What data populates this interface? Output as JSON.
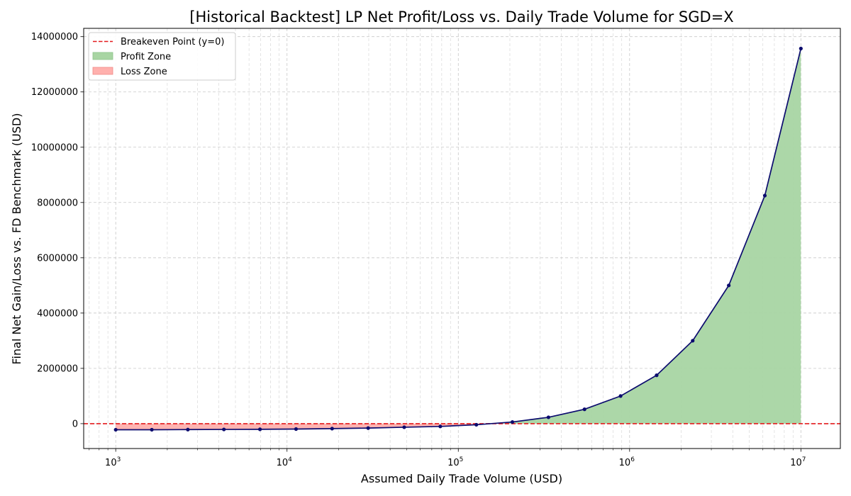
{
  "chart_data": {
    "type": "line",
    "title": "[Historical Backtest] LP Net Profit/Loss vs. Daily Trade Volume for SGD=X",
    "xlabel": "Assumed Daily Trade Volume (USD)",
    "ylabel": "Final Net Gain/Loss vs. FD Benchmark (USD)",
    "x_scale": "log",
    "xlim": [
      650,
      17000000
    ],
    "ylim": [
      -900000,
      14300000
    ],
    "grid": true,
    "legend_position": "top-left",
    "x_ticks": [
      {
        "value": 1000,
        "base": "10",
        "exp": "3"
      },
      {
        "value": 10000,
        "base": "10",
        "exp": "4"
      },
      {
        "value": 100000,
        "base": "10",
        "exp": "5"
      },
      {
        "value": 1000000,
        "base": "10",
        "exp": "6"
      },
      {
        "value": 10000000,
        "base": "10",
        "exp": "7"
      }
    ],
    "y_ticks": [
      {
        "value": 0,
        "label": "0"
      },
      {
        "value": 2000000,
        "label": "2000000"
      },
      {
        "value": 4000000,
        "label": "4000000"
      },
      {
        "value": 6000000,
        "label": "6000000"
      },
      {
        "value": 8000000,
        "label": "8000000"
      },
      {
        "value": 10000000,
        "label": "10000000"
      },
      {
        "value": 12000000,
        "label": "12000000"
      },
      {
        "value": 14000000,
        "label": "14000000"
      }
    ],
    "series": [
      {
        "color": "#0b0b6e",
        "points": [
          {
            "x": 1000,
            "y": -220000
          },
          {
            "x": 1624,
            "y": -220000
          },
          {
            "x": 2637,
            "y": -215000
          },
          {
            "x": 4281,
            "y": -210000
          },
          {
            "x": 6952,
            "y": -205000
          },
          {
            "x": 11288,
            "y": -195000
          },
          {
            "x": 18330,
            "y": -180000
          },
          {
            "x": 29764,
            "y": -160000
          },
          {
            "x": 48329,
            "y": -130000
          },
          {
            "x": 78476,
            "y": -100000
          },
          {
            "x": 127427,
            "y": -40000
          },
          {
            "x": 206914,
            "y": 60000
          },
          {
            "x": 335982,
            "y": 230000
          },
          {
            "x": 545559,
            "y": 520000
          },
          {
            "x": 885867,
            "y": 1000000
          },
          {
            "x": 1438450,
            "y": 1750000
          },
          {
            "x": 2335721,
            "y": 3000000
          },
          {
            "x": 3792690,
            "y": 5000000
          },
          {
            "x": 6158482,
            "y": 8250000
          },
          {
            "x": 10000000,
            "y": 13570000
          }
        ]
      }
    ],
    "breakeven": {
      "y": 0,
      "color": "#e41a1c"
    },
    "profit_color": "#a8d5a3",
    "loss_color": "#ffb0ad",
    "legend": [
      {
        "kind": "dashed-line",
        "label": "Breakeven Point (y=0)",
        "color": "#e41a1c"
      },
      {
        "kind": "patch",
        "label": "Profit Zone",
        "color": "#a8d5a3"
      },
      {
        "kind": "patch",
        "label": "Loss Zone",
        "color": "#ffb0ad"
      }
    ]
  }
}
